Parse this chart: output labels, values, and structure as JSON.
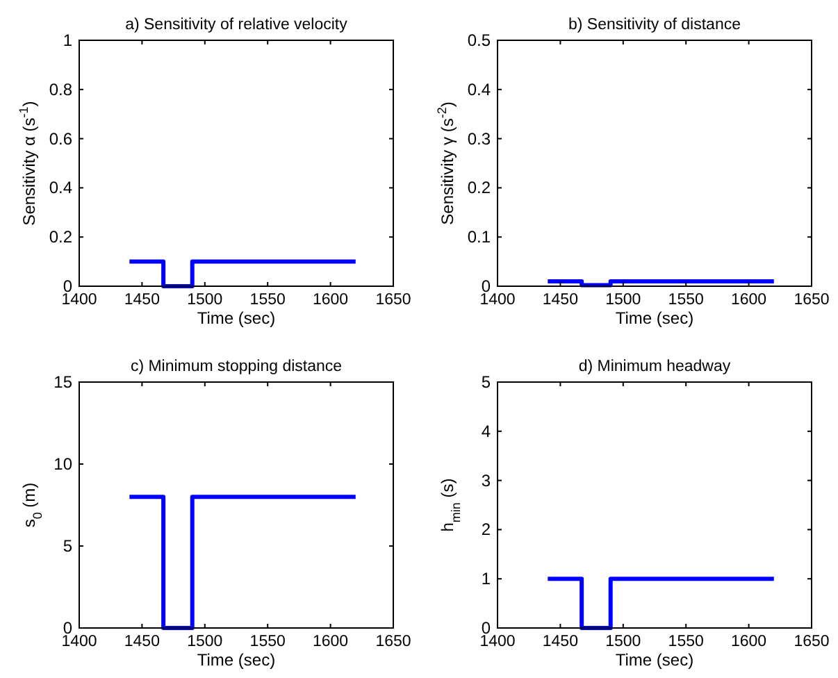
{
  "chart_data": [
    {
      "type": "line",
      "title": "a) Sensitivity of relative velocity",
      "xlabel": "Time (sec)",
      "ylabel": "Sensitivity α (s$^{-1}$)",
      "xlim": [
        1400,
        1650
      ],
      "xticks": [
        1400,
        1450,
        1500,
        1550,
        1600,
        1650
      ],
      "ylim": [
        0,
        1
      ],
      "yticks": [
        0,
        0.2,
        0.4,
        0.6,
        0.8,
        1
      ],
      "grid": false,
      "marker": "none",
      "line_style": "solid",
      "series": [
        {
          "color": "#0000ff",
          "x": [
            1440,
            1467,
            1467,
            1490,
            1490,
            1620
          ],
          "values": [
            0.1,
            0.1,
            0,
            0,
            0.1,
            0.1
          ]
        }
      ]
    },
    {
      "type": "line",
      "title": "b) Sensitivity of distance",
      "xlabel": "Time (sec)",
      "ylabel": "Sensitivity γ (s$^{-2}$)",
      "xlim": [
        1400,
        1650
      ],
      "xticks": [
        1400,
        1450,
        1500,
        1550,
        1600,
        1650
      ],
      "ylim": [
        0,
        0.5
      ],
      "yticks": [
        0,
        0.1,
        0.2,
        0.3,
        0.4,
        0.5
      ],
      "grid": false,
      "marker": "none",
      "line_style": "solid",
      "series": [
        {
          "color": "#0000ff",
          "x": [
            1440,
            1467,
            1467,
            1490,
            1490,
            1620
          ],
          "values": [
            0.01,
            0.01,
            0.002,
            0.002,
            0.01,
            0.01
          ]
        }
      ]
    },
    {
      "type": "line",
      "title": "c) Minimum stopping distance",
      "xlabel": "Time (sec)",
      "ylabel": "s$_{0}$ (m)",
      "xlim": [
        1400,
        1650
      ],
      "xticks": [
        1400,
        1450,
        1500,
        1550,
        1600,
        1650
      ],
      "ylim": [
        0,
        15
      ],
      "yticks": [
        0,
        5,
        10,
        15
      ],
      "grid": false,
      "marker": "none",
      "line_style": "solid",
      "series": [
        {
          "color": "#0000ff",
          "x": [
            1440,
            1467,
            1467,
            1490,
            1490,
            1620
          ],
          "values": [
            8,
            8,
            0,
            0,
            8,
            8
          ]
        }
      ]
    },
    {
      "type": "line",
      "title": "d) Minimum headway",
      "xlabel": "Time (sec)",
      "ylabel": "h$_{min}$ (s)",
      "xlim": [
        1400,
        1650
      ],
      "xticks": [
        1400,
        1450,
        1500,
        1550,
        1600,
        1650
      ],
      "ylim": [
        0,
        5
      ],
      "yticks": [
        0,
        1,
        2,
        3,
        4,
        5
      ],
      "grid": false,
      "marker": "none",
      "line_style": "solid",
      "series": [
        {
          "color": "#0000ff",
          "x": [
            1440,
            1467,
            1467,
            1490,
            1490,
            1620
          ],
          "values": [
            1,
            1,
            0,
            0,
            1,
            1
          ]
        }
      ]
    }
  ]
}
